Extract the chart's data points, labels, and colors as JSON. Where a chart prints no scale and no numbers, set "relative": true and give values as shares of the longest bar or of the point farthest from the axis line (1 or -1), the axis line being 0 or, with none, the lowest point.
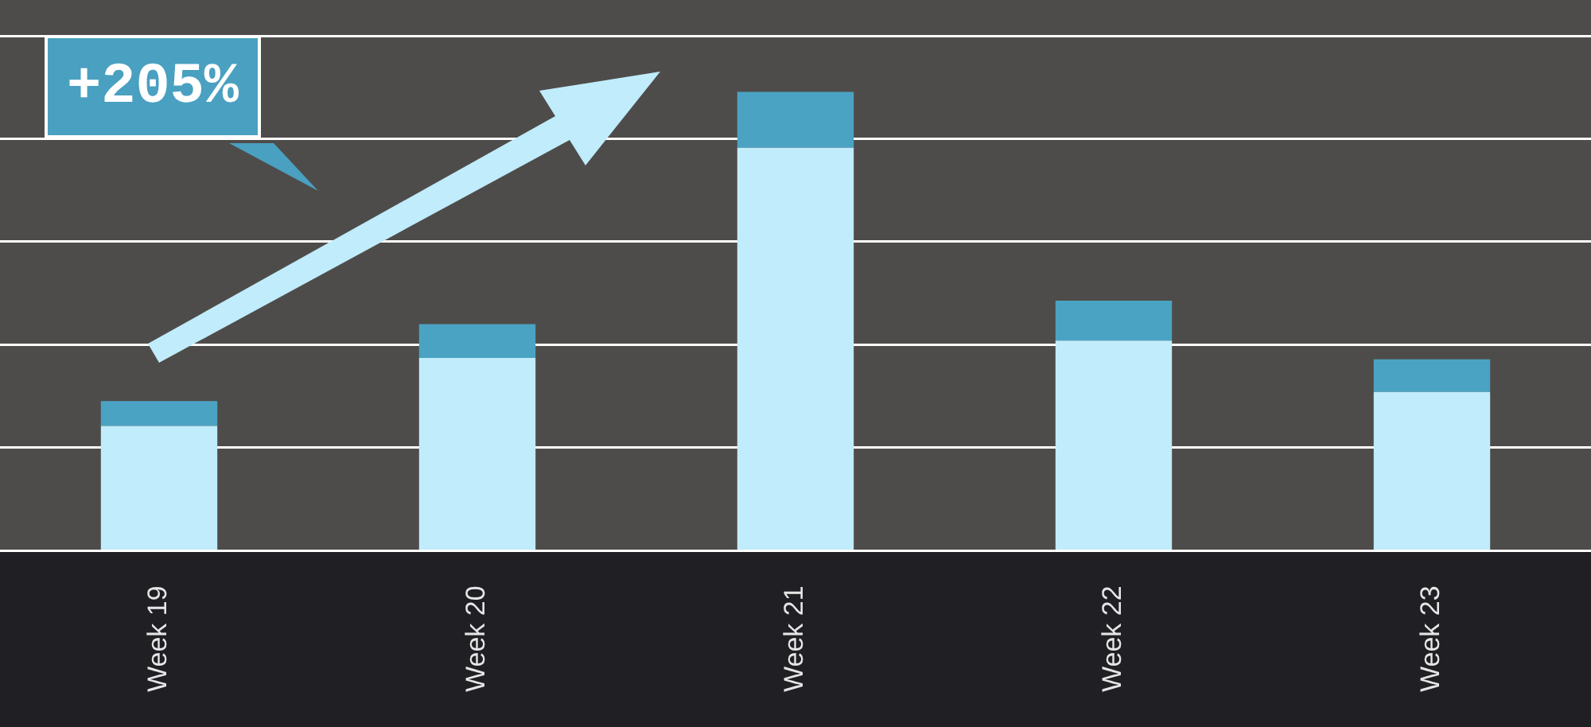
{
  "chart_data": {
    "type": "bar",
    "relative": true,
    "stacked": true,
    "grid": "y",
    "legend": false,
    "categories": [
      "Week 19",
      "Week 20",
      "Week 21",
      "Week 22",
      "Week 23"
    ],
    "series": [
      {
        "color": "#c0ecfb",
        "values": [
          0.272,
          0.42,
          0.878,
          0.458,
          0.346
        ]
      },
      {
        "color": "#4ba3c3",
        "values": [
          0.054,
          0.074,
          0.122,
          0.087,
          0.071
        ]
      }
    ],
    "annotations": [
      "+205%"
    ]
  }
}
